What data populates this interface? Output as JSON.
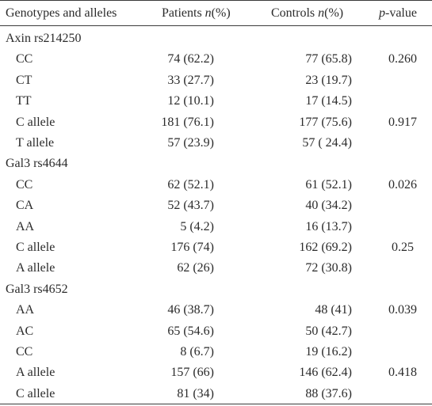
{
  "header": {
    "col1": "Genotypes and alleles",
    "col2_prefix": "Patients ",
    "col2_italic": "n",
    "col2_suffix": "(%)",
    "col3_prefix": "Controls ",
    "col3_italic": "n",
    "col3_suffix": "(%)",
    "col4_italic": "p",
    "col4_suffix": "-value"
  },
  "rows": [
    {
      "label": "Axin rs214250",
      "group": true
    },
    {
      "label": "CC",
      "patients": "74 (62.2)",
      "controls": "77 (65.8)",
      "p": "0.260"
    },
    {
      "label": "CT",
      "patients": "33 (27.7)",
      "controls": "23 (19.7)",
      "p": ""
    },
    {
      "label": "TT",
      "patients": "12 (10.1)",
      "controls": "17 (14.5)",
      "p": ""
    },
    {
      "label": "C allele",
      "patients": "181 (76.1)",
      "controls": "177 (75.6)",
      "p": "0.917"
    },
    {
      "label": "T allele",
      "patients": "57 (23.9)",
      "controls": "57 ( 24.4)",
      "p": ""
    },
    {
      "label": "Gal3 rs4644",
      "group": true
    },
    {
      "label": "CC",
      "patients": "62 (52.1)",
      "controls": "61 (52.1)",
      "p": "0.026"
    },
    {
      "label": "CA",
      "patients": "52 (43.7)",
      "controls": "40 (34.2)",
      "p": ""
    },
    {
      "label": "AA",
      "patients": "5 (4.2)",
      "controls": "16 (13.7)",
      "p": ""
    },
    {
      "label": "C allele",
      "patients": "176 (74)",
      "controls": "162 (69.2)",
      "p": "0.25"
    },
    {
      "label": "A allele",
      "patients": "62 (26)",
      "controls": "72 (30.8)",
      "p": ""
    },
    {
      "label": "Gal3 rs4652",
      "group": true
    },
    {
      "label": "AA",
      "patients": "46 (38.7)",
      "controls": "48 (41)",
      "p": "0.039"
    },
    {
      "label": "AC",
      "patients": "65 (54.6)",
      "controls": "50 (42.7)",
      "p": ""
    },
    {
      "label": "CC",
      "patients": "8 (6.7)",
      "controls": "19 (16.2)",
      "p": ""
    },
    {
      "label": "A allele",
      "patients": "157 (66)",
      "controls": "146 (62.4)",
      "p": "0.418"
    },
    {
      "label": "C allele",
      "patients": "81 (34)",
      "controls": "88 (37.6)",
      "p": ""
    }
  ]
}
